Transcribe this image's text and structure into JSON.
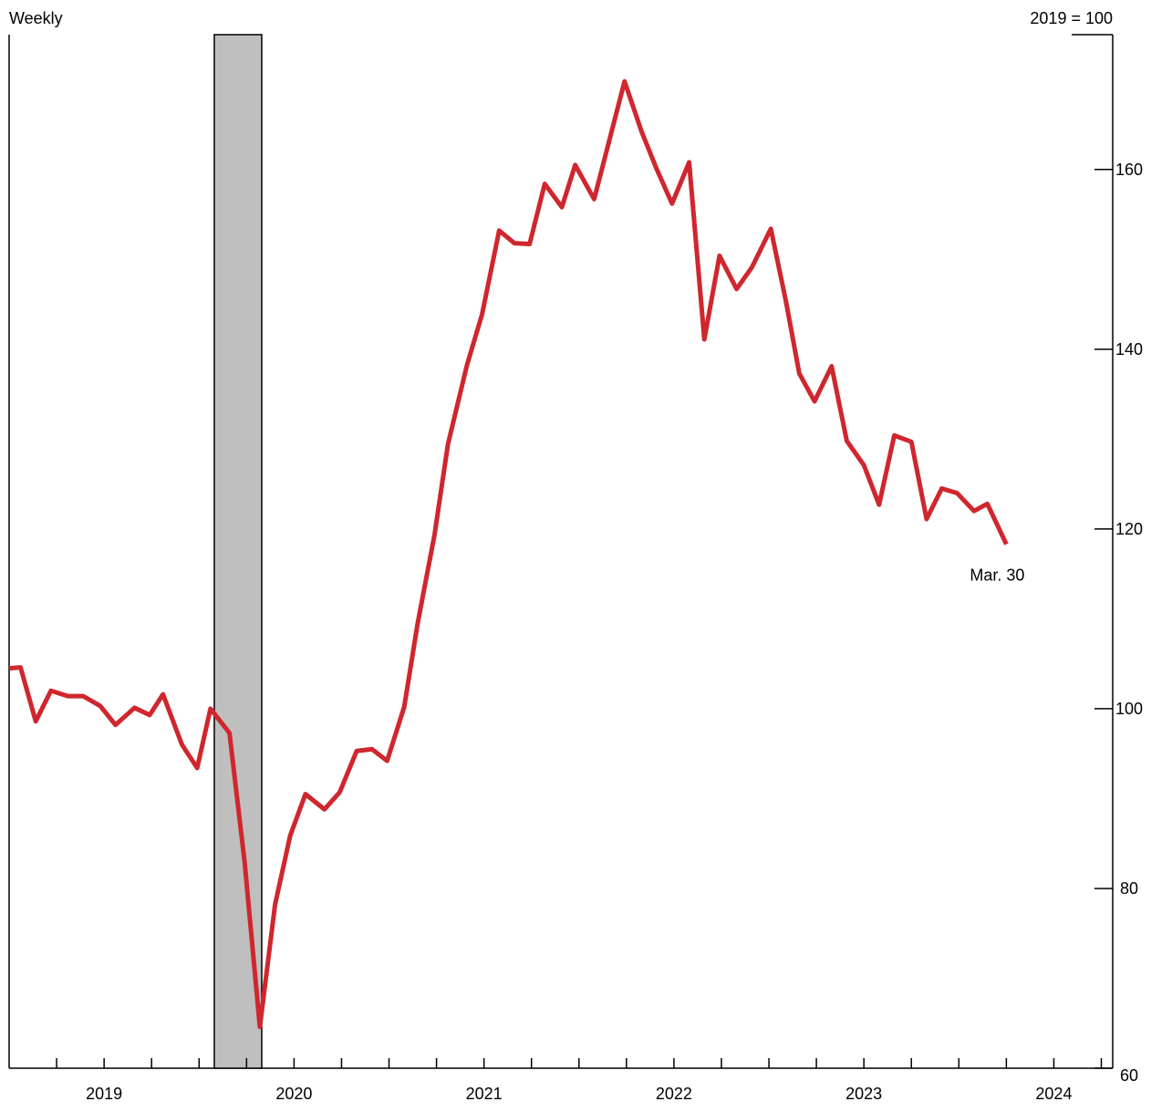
{
  "chart_data": {
    "type": "line",
    "y_label": "Weekly",
    "y2_label": "2019 = 100",
    "annotation": "Mar. 30",
    "recession": [
      2020.08,
      2020.33
    ],
    "x": [
      2019.0,
      2019.06,
      2019.14,
      2019.22,
      2019.31,
      2019.39,
      2019.48,
      2019.56,
      2019.66,
      2019.74,
      2019.81,
      2019.91,
      2019.99,
      2020.06,
      2020.16,
      2020.24,
      2020.32,
      2020.4,
      2020.48,
      2020.56,
      2020.66,
      2020.74,
      2020.83,
      2020.91,
      2020.99,
      2021.08,
      2021.15,
      2021.24,
      2021.31,
      2021.41,
      2021.49,
      2021.58,
      2021.66,
      2021.74,
      2021.82,
      2021.91,
      2021.98,
      2022.08,
      2022.24,
      2022.33,
      2022.41,
      2022.49,
      2022.58,
      2022.66,
      2022.74,
      2022.83,
      2022.91,
      2023.01,
      2023.09,
      2023.16,
      2023.24,
      2023.33,
      2023.41,
      2023.5,
      2023.58,
      2023.66,
      2023.75,
      2023.83,
      2023.91,
      2023.99,
      2024.08,
      2024.15,
      2024.25
    ],
    "series": [
      {
        "color": "#d0262d",
        "values": [
          104.5,
          104.6,
          98.6,
          102.0,
          101.4,
          101.4,
          100.3,
          98.2,
          100.1,
          99.3,
          101.6,
          96.0,
          93.4,
          100.0,
          97.3,
          82.9,
          64.6,
          78.2,
          85.9,
          90.5,
          88.8,
          90.7,
          95.3,
          95.5,
          94.2,
          100.2,
          109.4,
          119.4,
          129.4,
          138.2,
          143.9,
          153.2,
          151.8,
          151.7,
          158.4,
          155.8,
          160.5,
          156.7,
          169.8,
          164.2,
          160.0,
          156.2,
          160.8,
          141.1,
          150.4,
          146.7,
          149.1,
          153.4,
          145.3,
          137.3,
          134.2,
          138.1,
          129.8,
          127.1,
          122.7,
          130.4,
          129.7,
          121.1,
          124.5,
          124.0,
          122.0,
          122.8,
          118.3
        ]
      }
    ],
    "xlim": [
      2019.0,
      2024.81
    ],
    "xticks": [
      {
        "value": 2019.5,
        "label": "2019"
      },
      {
        "value": 2020.5,
        "label": "2020"
      },
      {
        "value": 2021.5,
        "label": "2021"
      },
      {
        "value": 2022.5,
        "label": "2022"
      },
      {
        "value": 2023.5,
        "label": "2023"
      },
      {
        "value": 2024.5,
        "label": "2024"
      }
    ],
    "ylim": [
      60,
      175
    ],
    "yticks": [
      60,
      80,
      100,
      120,
      140,
      160
    ],
    "recession_color": "#bfbfbf"
  }
}
